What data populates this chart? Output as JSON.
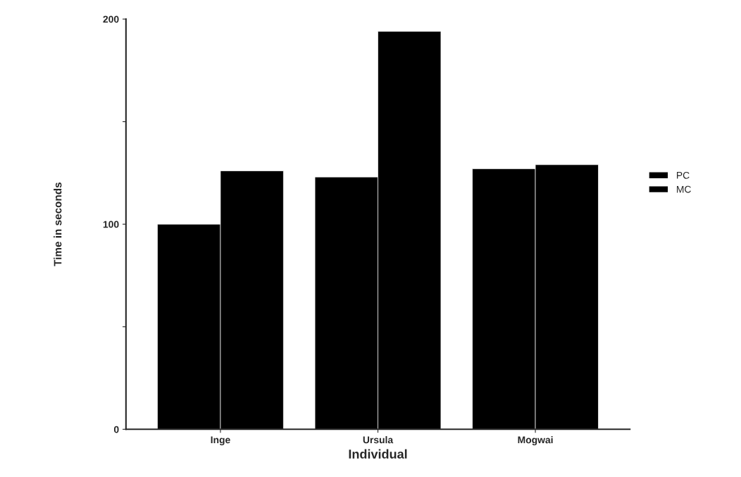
{
  "chart_data": {
    "type": "bar",
    "xlabel": "Individual",
    "ylabel": "Time in seconds",
    "categories": [
      "Inge",
      "Ursula",
      "Mogwai"
    ],
    "series": [
      {
        "name": "PC",
        "color": "#000000",
        "values": [
          100,
          123,
          127
        ]
      },
      {
        "name": "MC",
        "color": "#000000",
        "values": [
          126,
          194,
          129
        ]
      }
    ],
    "ylim": [
      0,
      200
    ],
    "yticks": [
      0,
      {
        "value": 50,
        "label": null
      },
      100,
      {
        "value": 150,
        "label": null
      },
      200
    ],
    "grid": false,
    "legend": "right"
  }
}
